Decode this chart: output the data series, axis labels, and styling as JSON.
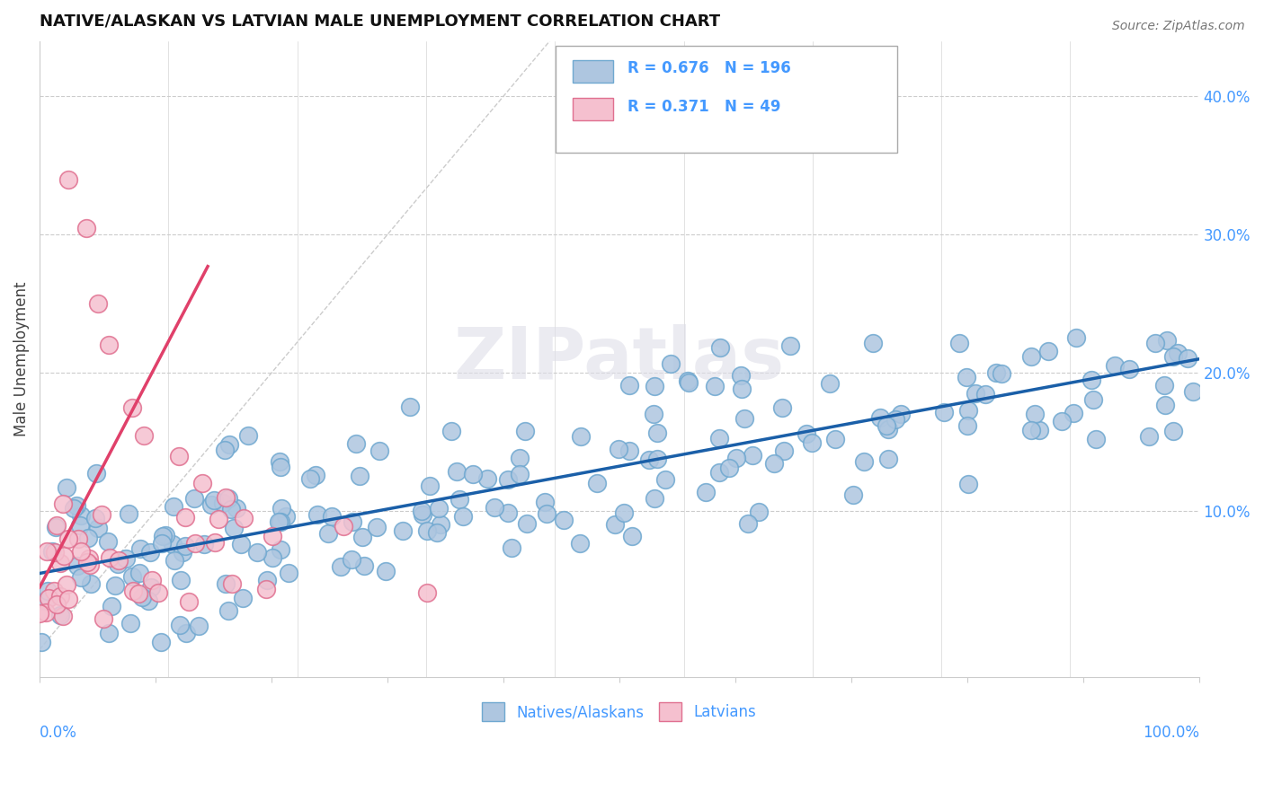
{
  "title": "NATIVE/ALASKAN VS LATVIAN MALE UNEMPLOYMENT CORRELATION CHART",
  "source": "Source: ZipAtlas.com",
  "ylabel": "Male Unemployment",
  "ytick_vals": [
    0.0,
    0.1,
    0.2,
    0.3,
    0.4
  ],
  "ytick_labels": [
    "",
    "10.0%",
    "20.0%",
    "30.0%",
    "40.0%"
  ],
  "xlim": [
    0.0,
    1.0
  ],
  "ylim": [
    -0.02,
    0.44
  ],
  "blue_R": 0.676,
  "blue_N": 196,
  "pink_R": 0.371,
  "pink_N": 49,
  "blue_color": "#aec6e0",
  "blue_edge": "#6fa8d0",
  "blue_line_color": "#1a5fa8",
  "pink_color": "#f5c0cf",
  "pink_edge": "#e07090",
  "pink_line_color": "#e0406a",
  "watermark": "ZIPatlas",
  "legend_label_blue": "Natives/Alaskans",
  "legend_label_pink": "Latvians",
  "title_fontsize": 13,
  "source_fontsize": 10,
  "background_color": "#ffffff",
  "tick_color": "#4499ff",
  "grid_color": "#cccccc",
  "blue_slope": 0.155,
  "blue_intercept": 0.055,
  "pink_slope": 1.6,
  "pink_intercept": 0.045
}
